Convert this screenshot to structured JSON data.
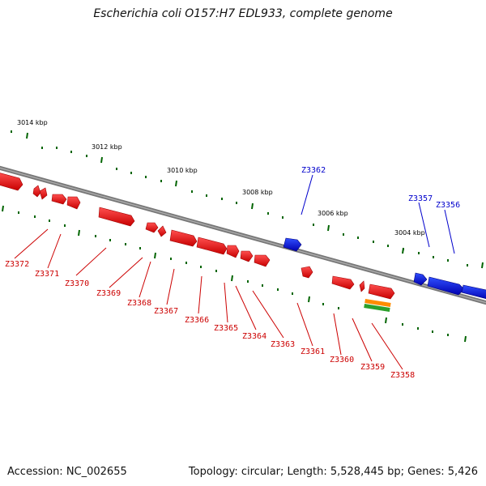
{
  "header": {
    "title": "Escherichia coli O157:H7 EDL933, complete genome"
  },
  "footer": {
    "accession": "Accession: NC_002655",
    "summary": "Topology: circular; Length: 5,528,445 bp; Genes: 5,426"
  },
  "colors": {
    "forward_gene": "#ff0000",
    "reverse_gene": "#0000ff",
    "backbone": "#777777",
    "tick": "#006400"
  },
  "scale_labels": [
    "3014 kbp",
    "3012 kbp",
    "3010 kbp",
    "3008 kbp",
    "3006 kbp",
    "3004 kbp"
  ],
  "genes_reverse_labels": [
    "Z3362",
    "Z3357",
    "Z3356"
  ],
  "genes_forward_labels": [
    "Z3372",
    "Z3371",
    "Z3370",
    "Z3369",
    "Z3368",
    "Z3367",
    "Z3366",
    "Z3365",
    "Z3364",
    "Z3363",
    "Z3361",
    "Z3360",
    "Z3359",
    "Z3358"
  ]
}
